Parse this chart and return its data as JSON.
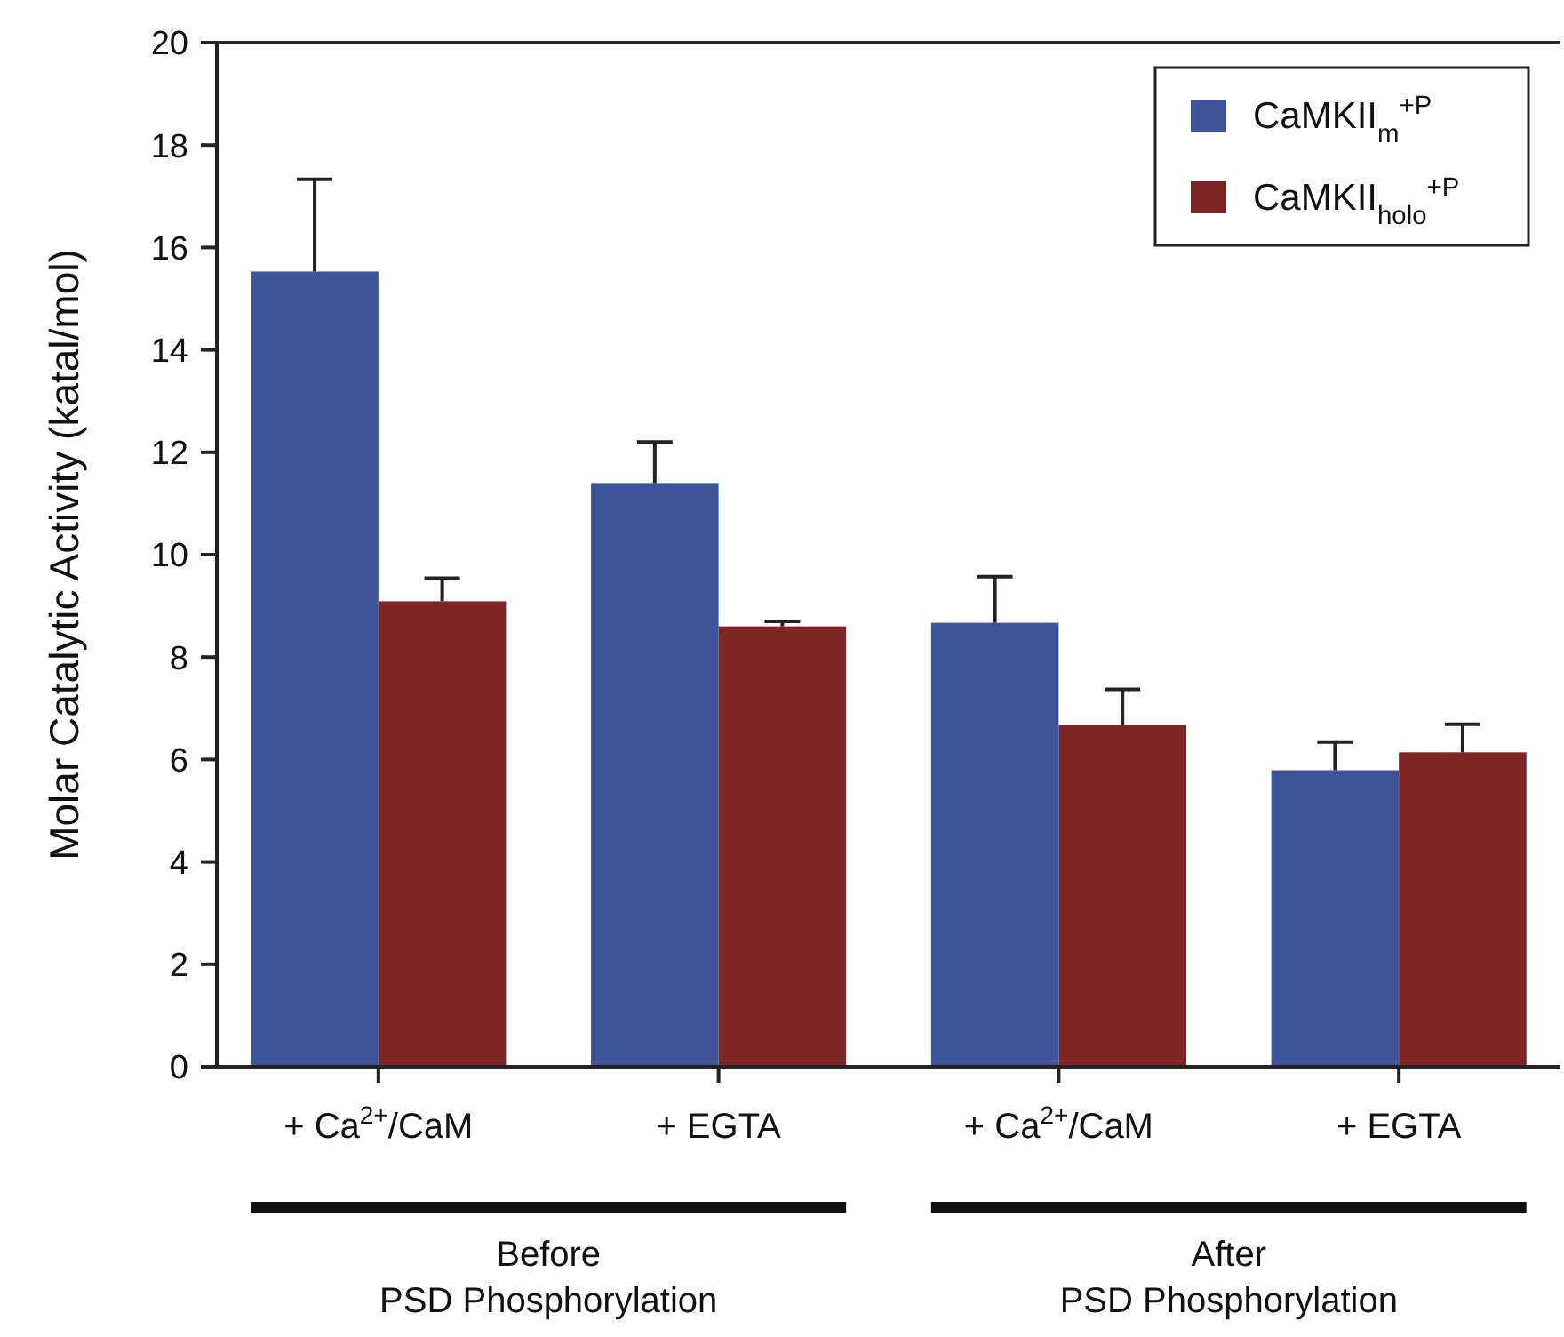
{
  "chart_data": {
    "type": "bar",
    "ylabel": "Molar Catalytic Activity (katal/mol)",
    "categories": [
      "+ Ca$^{2+}$/CaM",
      "+ EGTA",
      "+ Ca$^{2+}$/CaM",
      "+ EGTA"
    ],
    "series": [
      {
        "name": "CaMKII$_{m}$$^{+P}$",
        "color": "#3d559b",
        "values": [
          15.53,
          11.4,
          8.67,
          5.79
        ],
        "errors": [
          1.8,
          0.8,
          0.9,
          0.55
        ]
      },
      {
        "name": "CaMKII$_{holo}$$^{+P}$",
        "color": "#7e2626",
        "values": [
          9.09,
          8.6,
          6.67,
          6.14
        ],
        "errors": [
          0.45,
          0.1,
          0.7,
          0.55
        ]
      }
    ],
    "ylim": [
      0,
      20
    ],
    "yticks": [
      0,
      2,
      4,
      6,
      8,
      10,
      12,
      14,
      16,
      18,
      20
    ],
    "legend": "top right",
    "annotations": [
      "Before PSD Phosphorylation",
      "After PSD Phosphorylation"
    ]
  }
}
